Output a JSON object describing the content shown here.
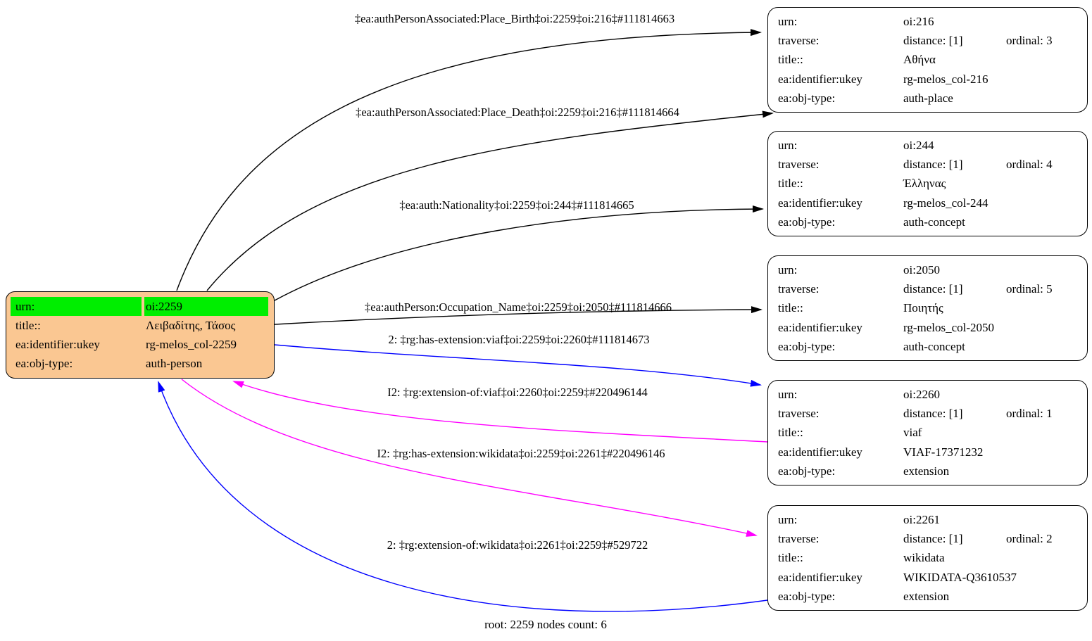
{
  "colors": {
    "node_fill": "#FAC792",
    "highlight_green": "#00EE00",
    "black": "#000000",
    "blue": "#0000FF",
    "magenta": "#FF00FF",
    "box_fill": "#FFFFFF"
  },
  "root_node": {
    "rows": [
      {
        "key": "urn:",
        "value": "oi:2259"
      },
      {
        "key": "title::",
        "value": "Λειβαδίτης, Τάσος"
      },
      {
        "key": "ea:identifier:ukey",
        "value": "rg-melos_col-2259"
      },
      {
        "key": "ea:obj-type:",
        "value": "auth-person"
      }
    ]
  },
  "node_keys": {
    "urn": "urn:",
    "traverse": "traverse:",
    "title": "title::",
    "ukey": "ea:identifier:ukey",
    "objtype": "ea:obj-type:"
  },
  "nodes": [
    {
      "urn": "oi:216",
      "distance": "distance: [1]",
      "ordinal": "ordinal: 3",
      "title": "Αθήνα",
      "ukey": "rg-melos_col-216",
      "objtype": "auth-place"
    },
    {
      "urn": "oi:244",
      "distance": "distance: [1]",
      "ordinal": "ordinal: 4",
      "title": "Έλληνας",
      "ukey": "rg-melos_col-244",
      "objtype": "auth-concept"
    },
    {
      "urn": "oi:2050",
      "distance": "distance: [1]",
      "ordinal": "ordinal: 5",
      "title": "Ποιητής",
      "ukey": "rg-melos_col-2050",
      "objtype": "auth-concept"
    },
    {
      "urn": "oi:2260",
      "distance": "distance: [1]",
      "ordinal": "ordinal: 1",
      "title": "viaf",
      "ukey": "VIAF-17371232",
      "objtype": "extension"
    },
    {
      "urn": "oi:2261",
      "distance": "distance: [1]",
      "ordinal": "ordinal: 2",
      "title": "wikidata",
      "ukey": "WIKIDATA-Q3610537",
      "objtype": "extension"
    }
  ],
  "edges": [
    {
      "label": "‡ea:authPersonAssociated:Place_Birth‡oi:2259‡oi:216‡#111814663",
      "color": "black"
    },
    {
      "label": "‡ea:authPersonAssociated:Place_Death‡oi:2259‡oi:216‡#111814664",
      "color": "black"
    },
    {
      "label": "‡ea:auth:Nationality‡oi:2259‡oi:244‡#111814665",
      "color": "black"
    },
    {
      "label": "‡ea:authPerson:Occupation_Name‡oi:2259‡oi:2050‡#111814666",
      "color": "black"
    },
    {
      "label": "2: ‡rg:has-extension:viaf‡oi:2259‡oi:2260‡#111814673",
      "color": "blue"
    },
    {
      "label": "I2: ‡rg:extension-of:viaf‡oi:2260‡oi:2259‡#220496144",
      "color": "magenta"
    },
    {
      "label": "I2: ‡rg:has-extension:wikidata‡oi:2259‡oi:2261‡#220496146",
      "color": "magenta"
    },
    {
      "label": "2: ‡rg:extension-of:wikidata‡oi:2261‡oi:2259‡#529722",
      "color": "blue"
    }
  ],
  "footer": "root: 2259 nodes count: 6"
}
